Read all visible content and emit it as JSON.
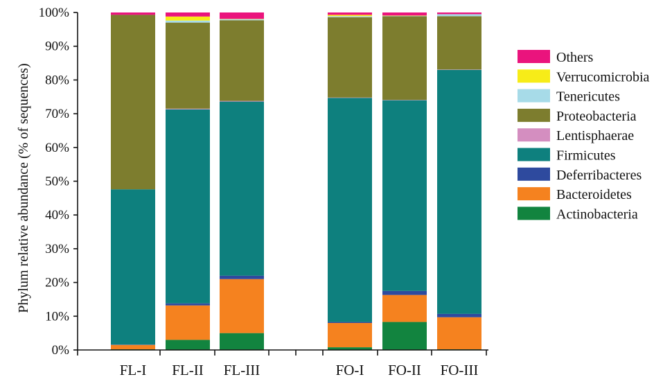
{
  "chart_data": {
    "type": "bar",
    "stacked": true,
    "ylabel": "Phylum relative abundance (% of sequences)",
    "xlabel": "",
    "ylim": [
      0,
      100
    ],
    "yticks": [
      "0%",
      "10%",
      "20%",
      "30%",
      "40%",
      "50%",
      "60%",
      "70%",
      "80%",
      "90%",
      "100%"
    ],
    "categories": [
      "FL-I",
      "FL-II",
      "FL-III",
      "FO-I",
      "FO-II",
      "FO-III"
    ],
    "groups": [
      [
        "FL-I",
        "FL-II",
        "FL-III"
      ],
      [
        "FO-I",
        "FO-II",
        "FO-III"
      ]
    ],
    "grid": false,
    "legend_position": "right",
    "series": [
      {
        "name": "Actinobacteria",
        "color": "#12843f",
        "values": [
          0.2,
          3.0,
          5.0,
          0.8,
          8.3,
          0.2
        ]
      },
      {
        "name": "Bacteroidetes",
        "color": "#f5821f",
        "values": [
          1.3,
          10.2,
          16.0,
          7.2,
          8.0,
          9.5
        ]
      },
      {
        "name": "Deferribacteres",
        "color": "#2e4a9e",
        "values": [
          0.1,
          0.6,
          1.0,
          0.3,
          1.2,
          1.0
        ]
      },
      {
        "name": "Firmicutes",
        "color": "#0e807e",
        "values": [
          46.0,
          57.5,
          51.6,
          66.4,
          56.5,
          72.3
        ]
      },
      {
        "name": "Lentisphaerae",
        "color": "#d48ec0",
        "values": [
          0.0,
          0.2,
          0.2,
          0.1,
          0.1,
          0.1
        ]
      },
      {
        "name": "Proteobacteria",
        "color": "#7d7d2e",
        "values": [
          51.7,
          25.5,
          23.9,
          23.8,
          24.8,
          15.8
        ]
      },
      {
        "name": "Tenericutes",
        "color": "#a7dbe8",
        "values": [
          0.0,
          0.6,
          0.3,
          0.3,
          0.1,
          0.6
        ]
      },
      {
        "name": "Verrucomicrobia",
        "color": "#f7ec18",
        "values": [
          0.0,
          1.2,
          0.1,
          0.4,
          0.1,
          0.0
        ]
      },
      {
        "name": "Others",
        "color": "#ea147d",
        "values": [
          0.7,
          1.2,
          1.9,
          0.7,
          0.9,
          0.5
        ]
      }
    ]
  }
}
